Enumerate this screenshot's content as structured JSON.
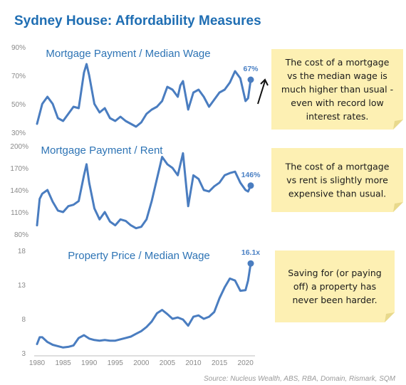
{
  "title": "Sydney House: Affordability Measures",
  "source": "Source: Nucleus Wealth, ABS, RBA, Domain, Rismark, SQM",
  "x_ticks": [
    "1980",
    "1985",
    "1990",
    "1995",
    "2000",
    "2005",
    "2010",
    "2015",
    "2020"
  ],
  "accent_color": "#4a7dc0",
  "note_color": "#fdf0b3",
  "chart_data": [
    {
      "type": "line",
      "title": "Mortgage Payment / Median Wage",
      "ylim": [
        30,
        90
      ],
      "y_ticks": [
        "90%",
        "70%",
        "50%",
        "30%"
      ],
      "end_label": "67%",
      "x": [
        1980,
        1981,
        1982,
        1983,
        1984,
        1985,
        1986,
        1987,
        1988,
        1989,
        1989.5,
        1990,
        1991,
        1992,
        1993,
        1994,
        1995,
        1996,
        1997,
        1998,
        1999,
        2000,
        2001,
        2002,
        2003,
        2004,
        2005,
        2006,
        2007,
        2007.5,
        2008,
        2009,
        2010,
        2011,
        2012,
        2013,
        2014,
        2015,
        2016,
        2017,
        2018,
        2019,
        2020,
        2020.5,
        2021
      ],
      "series": [
        {
          "values": [
            36,
            50,
            55,
            50,
            40,
            38,
            43,
            48,
            47,
            72,
            78,
            70,
            50,
            44,
            47,
            40,
            38,
            41,
            38,
            36,
            34,
            37,
            43,
            46,
            48,
            52,
            62,
            60,
            55,
            63,
            66,
            46,
            58,
            60,
            55,
            48,
            53,
            58,
            60,
            65,
            73,
            68,
            52,
            54,
            67
          ]
        }
      ]
    },
    {
      "type": "line",
      "title": "Mortgage Payment / Rent",
      "ylim": [
        80,
        200
      ],
      "y_ticks": [
        "200%",
        "170%",
        "140%",
        "110%",
        "80%"
      ],
      "end_label": "146%",
      "x": [
        1980,
        1980.5,
        1981,
        1982,
        1983,
        1984,
        1985,
        1986,
        1987,
        1988,
        1989,
        1989.5,
        1990,
        1991,
        1992,
        1993,
        1994,
        1995,
        1996,
        1997,
        1998,
        1999,
        2000,
        2001,
        2002,
        2003,
        2004,
        2005,
        2006,
        2007,
        2008,
        2009,
        2010,
        2011,
        2012,
        2013,
        2014,
        2015,
        2016,
        2017,
        2018,
        2019,
        2020,
        2020.5,
        2021
      ],
      "series": [
        {
          "values": [
            92,
            128,
            135,
            140,
            124,
            112,
            110,
            118,
            120,
            125,
            160,
            175,
            150,
            115,
            100,
            110,
            97,
            92,
            100,
            98,
            92,
            88,
            90,
            100,
            125,
            155,
            185,
            175,
            170,
            160,
            190,
            118,
            160,
            155,
            140,
            138,
            145,
            150,
            160,
            163,
            165,
            150,
            140,
            138,
            146
          ]
        }
      ]
    },
    {
      "type": "line",
      "title": "Property Price / Median Wage",
      "ylim": [
        3,
        18
      ],
      "y_ticks": [
        "18",
        "13",
        "8",
        "3"
      ],
      "end_label": "16.1x",
      "x": [
        1980,
        1980.5,
        1981,
        1982,
        1983,
        1984,
        1985,
        1986,
        1987,
        1988,
        1989,
        1990,
        1991,
        1992,
        1993,
        1994,
        1995,
        1996,
        1997,
        1998,
        1999,
        2000,
        2001,
        2002,
        2003,
        2004,
        2005,
        2006,
        2007,
        2008,
        2009,
        2010,
        2011,
        2012,
        2013,
        2014,
        2015,
        2016,
        2017,
        2018,
        2019,
        2020,
        2020.5,
        2021
      ],
      "series": [
        {
          "values": [
            4.3,
            5.3,
            5.3,
            4.6,
            4.2,
            4.0,
            3.8,
            3.9,
            4.1,
            5.2,
            5.6,
            5.1,
            4.9,
            4.8,
            4.9,
            4.8,
            4.8,
            5.0,
            5.2,
            5.4,
            5.8,
            6.2,
            6.8,
            7.6,
            8.8,
            9.3,
            8.7,
            8.0,
            8.2,
            7.9,
            7.0,
            8.3,
            8.5,
            8.0,
            8.3,
            9.0,
            11.0,
            12.6,
            13.9,
            13.6,
            12.1,
            12.2,
            13.6,
            16.1
          ]
        }
      ]
    }
  ],
  "notes": [
    [
      "The cost of a mortgage",
      "vs the median wage is",
      "much higher than usual -",
      "even with record low",
      "interest rates."
    ],
    [
      "The cost of a mortgage",
      "vs rent is slightly more",
      "expensive than usual."
    ],
    [
      "Saving for (or paying",
      "off) a property has",
      "never been harder."
    ]
  ]
}
